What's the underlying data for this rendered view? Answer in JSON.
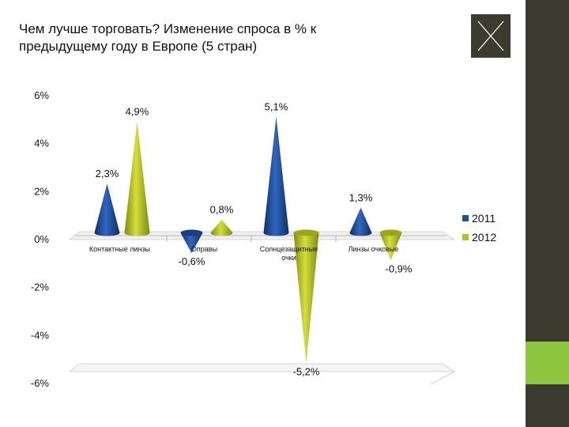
{
  "title": "Чем лучше торговать? Изменение спроса в % к предыдущему году в Европе (5 стран)",
  "colors": {
    "sidebar": "#3b3b30",
    "accent": "#8dc63f",
    "series_2011": "#1f4e9b",
    "series_2012": "#b5c21c"
  },
  "close_icon": "close-icon",
  "chart_data": {
    "type": "bar",
    "title": "Чем лучше торговать? Изменение спроса в % к предыдущему году в Европе (5 стран)",
    "xlabel": "",
    "ylabel": "",
    "ylim": [
      -6,
      6
    ],
    "yticks": [
      6,
      4,
      2,
      0,
      -2,
      -4,
      -6
    ],
    "ytick_labels": [
      "6%",
      "4%",
      "2%",
      "0%",
      "-2%",
      "-4%",
      "-6%"
    ],
    "grid": false,
    "legend_position": "right",
    "categories": [
      "Контактные линзы",
      "Оправы",
      "Солнцезащитные очки",
      "Линзы очковые"
    ],
    "category_labels": [
      [
        "Контактные линзы"
      ],
      [
        "Оправы"
      ],
      [
        "Солнцезащитные",
        "очки"
      ],
      [
        "Линзы очковые"
      ]
    ],
    "series": [
      {
        "name": "2011",
        "values": [
          2.3,
          -0.6,
          5.1,
          1.3
        ],
        "labels": [
          "2,3%",
          "-0,6%",
          "5,1%",
          "1,3%"
        ]
      },
      {
        "name": "2012",
        "values": [
          4.9,
          0.8,
          -5.2,
          -0.9
        ],
        "labels": [
          "4,9%",
          "0,8%",
          "-5,2%",
          "-0,9%"
        ]
      }
    ]
  }
}
